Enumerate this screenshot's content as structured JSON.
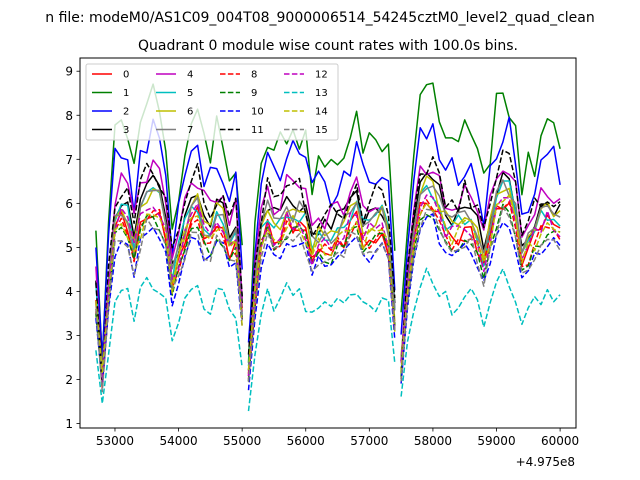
{
  "chart_data": {
    "type": "line",
    "suptitle": "n file: modeM0/AS1C09_004T08_9000006514_54245cztM0_level2_quad_clean",
    "title": "Quadrant 0 module wise count rates with 100.0s bins.",
    "xlabel": "",
    "ylabel": "",
    "x_offset_label": "+4.975e8",
    "xlim": [
      52450,
      60250
    ],
    "ylim": [
      0.9,
      9.3
    ],
    "x_ticks": [
      53000,
      54000,
      55000,
      56000,
      57000,
      58000,
      59000,
      60000
    ],
    "x_tick_labels": [
      "53000",
      "54000",
      "55000",
      "56000",
      "57000",
      "58000",
      "59000",
      "60000"
    ],
    "y_ticks": [
      1,
      2,
      3,
      4,
      5,
      6,
      7,
      8,
      9
    ],
    "y_tick_labels": [
      "1",
      "2",
      "3",
      "4",
      "5",
      "6",
      "7",
      "8",
      "9"
    ],
    "legend_position": "upper-left",
    "legend_columns": 4,
    "x_segments": [
      {
        "start": 52700,
        "end": 55000,
        "step": 100
      },
      {
        "start": 55100,
        "end": 57400,
        "step": 100
      },
      {
        "start": 57500,
        "end": 60050,
        "step": 100
      }
    ],
    "series": [
      {
        "name": "0",
        "color": "#ff0000",
        "dash": "solid",
        "base": 5.5,
        "noise": 0.25
      },
      {
        "name": "1",
        "color": "#008000",
        "dash": "solid",
        "base": 7.6,
        "noise": 0.55
      },
      {
        "name": "2",
        "color": "#0000ff",
        "dash": "solid",
        "base": 7.0,
        "noise": 0.45
      },
      {
        "name": "3",
        "color": "#000000",
        "dash": "solid",
        "base": 6.0,
        "noise": 0.25
      },
      {
        "name": "4",
        "color": "#bf00bf",
        "dash": "solid",
        "base": 6.3,
        "noise": 0.35
      },
      {
        "name": "5",
        "color": "#00bfbf",
        "dash": "solid",
        "base": 5.8,
        "noise": 0.25
      },
      {
        "name": "6",
        "color": "#bfbf00",
        "dash": "solid",
        "base": 5.8,
        "noise": 0.25
      },
      {
        "name": "7",
        "color": "#7f7f7f",
        "dash": "solid",
        "base": 5.8,
        "noise": 0.25
      },
      {
        "name": "8",
        "color": "#ff0000",
        "dash": "dashed",
        "base": 5.4,
        "noise": 0.2
      },
      {
        "name": "9",
        "color": "#008000",
        "dash": "dashed",
        "base": 5.3,
        "noise": 0.2
      },
      {
        "name": "10",
        "color": "#0000ff",
        "dash": "dashed",
        "base": 5.1,
        "noise": 0.2
      },
      {
        "name": "11",
        "color": "#000000",
        "dash": "dashed",
        "base": 6.3,
        "noise": 0.35
      },
      {
        "name": "12",
        "color": "#bf00bf",
        "dash": "dashed",
        "base": 5.6,
        "noise": 0.25
      },
      {
        "name": "13",
        "color": "#00bfbf",
        "dash": "dashed",
        "base": 3.9,
        "noise": 0.25
      },
      {
        "name": "14",
        "color": "#bfbf00",
        "dash": "dashed",
        "base": 5.5,
        "noise": 0.25
      },
      {
        "name": "15",
        "color": "#7f7f7f",
        "dash": "dashed",
        "base": 5.2,
        "noise": 0.2
      }
    ]
  }
}
